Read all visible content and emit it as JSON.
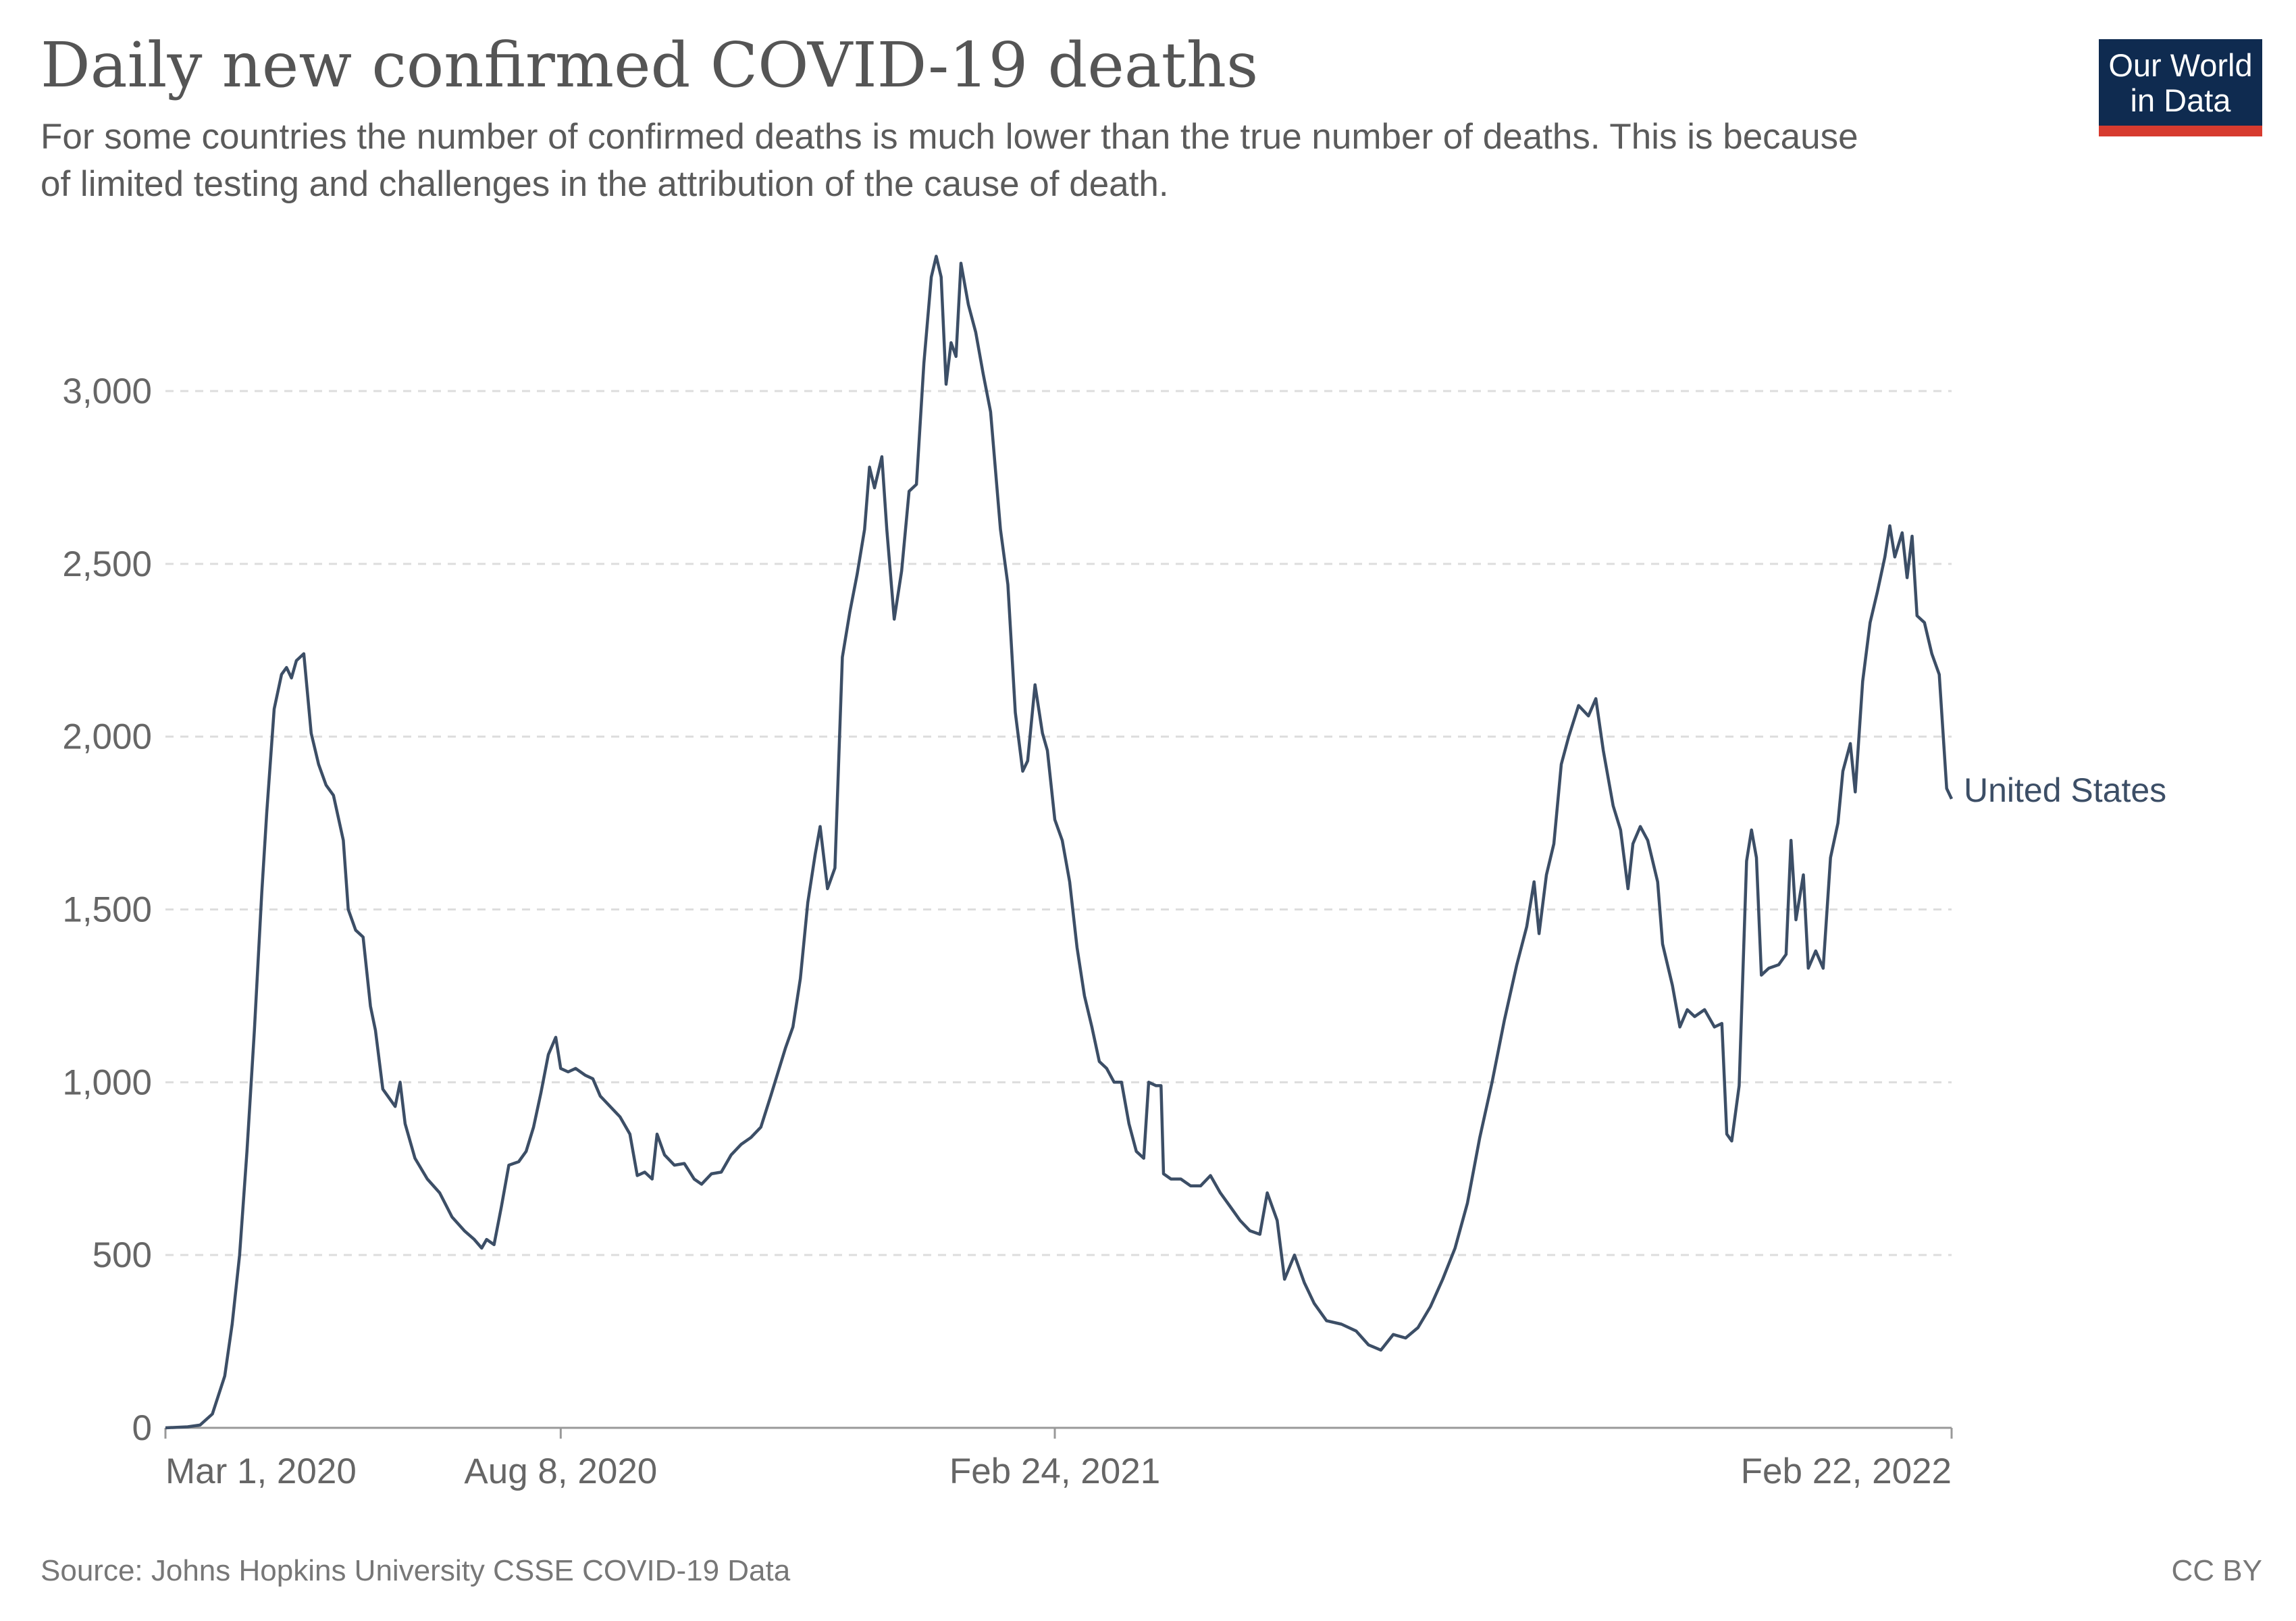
{
  "header": {
    "title": "Daily new confirmed COVID-19 deaths",
    "subtitle_line1": "For some countries the number of confirmed deaths is much lower than the true number of deaths. This is because",
    "subtitle_line2": "of limited testing and challenges in the attribution of the cause of death."
  },
  "logo": {
    "line1": "Our World",
    "line2": "in Data",
    "bg_color": "#0f2b50",
    "stripe_color": "#d73b2f"
  },
  "footer": {
    "source": "Source: Johns Hopkins University CSSE COVID-19 Data",
    "license": "CC BY"
  },
  "chart_data": {
    "type": "line",
    "title": "Daily new confirmed COVID-19 deaths",
    "xlabel": "",
    "ylabel": "",
    "ylim": [
      0,
      3400
    ],
    "yticks": [
      0,
      500,
      1000,
      1500,
      2000,
      2500,
      3000
    ],
    "ytick_labels": [
      "0",
      "500",
      "1,000",
      "1,500",
      "2,000",
      "2,500",
      "3,000"
    ],
    "xlim": [
      "2020-03-01",
      "2022-02-22"
    ],
    "xticks": [
      "2020-03-01",
      "2020-08-08",
      "2021-02-24",
      "2022-02-22"
    ],
    "xtick_labels": [
      "Mar 1, 2020",
      "Aug 8, 2020",
      "Feb 24, 2021",
      "Feb 22, 2022"
    ],
    "grid": "horizontal dashed",
    "legend": "inline label at line end",
    "series": [
      {
        "name": "United States",
        "color": "#3c4e66",
        "points": [
          [
            "2020-03-01",
            0
          ],
          [
            "2020-03-10",
            3
          ],
          [
            "2020-03-15",
            8
          ],
          [
            "2020-03-20",
            40
          ],
          [
            "2020-03-25",
            150
          ],
          [
            "2020-03-28",
            300
          ],
          [
            "2020-03-31",
            500
          ],
          [
            "2020-04-03",
            800
          ],
          [
            "2020-04-06",
            1150
          ],
          [
            "2020-04-09",
            1550
          ],
          [
            "2020-04-11",
            1780
          ],
          [
            "2020-04-14",
            2080
          ],
          [
            "2020-04-17",
            2180
          ],
          [
            "2020-04-19",
            2200
          ],
          [
            "2020-04-21",
            2170
          ],
          [
            "2020-04-23",
            2220
          ],
          [
            "2020-04-26",
            2240
          ],
          [
            "2020-04-29",
            2010
          ],
          [
            "2020-05-02",
            1920
          ],
          [
            "2020-05-05",
            1860
          ],
          [
            "2020-05-08",
            1830
          ],
          [
            "2020-05-12",
            1700
          ],
          [
            "2020-05-14",
            1500
          ],
          [
            "2020-05-17",
            1440
          ],
          [
            "2020-05-20",
            1420
          ],
          [
            "2020-05-23",
            1220
          ],
          [
            "2020-05-25",
            1150
          ],
          [
            "2020-05-28",
            980
          ],
          [
            "2020-06-02",
            930
          ],
          [
            "2020-06-04",
            1000
          ],
          [
            "2020-06-06",
            880
          ],
          [
            "2020-06-10",
            780
          ],
          [
            "2020-06-15",
            720
          ],
          [
            "2020-06-20",
            680
          ],
          [
            "2020-06-25",
            610
          ],
          [
            "2020-06-30",
            570
          ],
          [
            "2020-07-04",
            545
          ],
          [
            "2020-07-07",
            520
          ],
          [
            "2020-07-09",
            545
          ],
          [
            "2020-07-12",
            530
          ],
          [
            "2020-07-15",
            640
          ],
          [
            "2020-07-18",
            760
          ],
          [
            "2020-07-22",
            770
          ],
          [
            "2020-07-25",
            800
          ],
          [
            "2020-07-28",
            870
          ],
          [
            "2020-07-31",
            970
          ],
          [
            "2020-08-03",
            1080
          ],
          [
            "2020-08-06",
            1130
          ],
          [
            "2020-08-08",
            1040
          ],
          [
            "2020-08-11",
            1030
          ],
          [
            "2020-08-14",
            1040
          ],
          [
            "2020-08-18",
            1020
          ],
          [
            "2020-08-21",
            1010
          ],
          [
            "2020-08-24",
            960
          ],
          [
            "2020-08-28",
            930
          ],
          [
            "2020-09-01",
            900
          ],
          [
            "2020-09-05",
            850
          ],
          [
            "2020-09-08",
            730
          ],
          [
            "2020-09-11",
            740
          ],
          [
            "2020-09-14",
            720
          ],
          [
            "2020-09-16",
            850
          ],
          [
            "2020-09-19",
            790
          ],
          [
            "2020-09-23",
            760
          ],
          [
            "2020-09-27",
            765
          ],
          [
            "2020-10-01",
            720
          ],
          [
            "2020-10-04",
            705
          ],
          [
            "2020-10-08",
            735
          ],
          [
            "2020-10-12",
            740
          ],
          [
            "2020-10-16",
            790
          ],
          [
            "2020-10-20",
            820
          ],
          [
            "2020-10-24",
            840
          ],
          [
            "2020-10-28",
            870
          ],
          [
            "2020-11-01",
            960
          ],
          [
            "2020-11-04",
            1030
          ],
          [
            "2020-11-07",
            1100
          ],
          [
            "2020-11-10",
            1160
          ],
          [
            "2020-11-13",
            1300
          ],
          [
            "2020-11-16",
            1520
          ],
          [
            "2020-11-19",
            1660
          ],
          [
            "2020-11-21",
            1740
          ],
          [
            "2020-11-24",
            1560
          ],
          [
            "2020-11-27",
            1620
          ],
          [
            "2020-11-30",
            2230
          ],
          [
            "2020-12-03",
            2360
          ],
          [
            "2020-12-06",
            2470
          ],
          [
            "2020-12-09",
            2600
          ],
          [
            "2020-12-11",
            2780
          ],
          [
            "2020-12-13",
            2720
          ],
          [
            "2020-12-16",
            2810
          ],
          [
            "2020-12-18",
            2600
          ],
          [
            "2020-12-21",
            2340
          ],
          [
            "2020-12-24",
            2480
          ],
          [
            "2020-12-27",
            2710
          ],
          [
            "2020-12-30",
            2730
          ],
          [
            "2021-01-02",
            3080
          ],
          [
            "2021-01-05",
            3330
          ],
          [
            "2021-01-07",
            3390
          ],
          [
            "2021-01-09",
            3330
          ],
          [
            "2021-01-11",
            3020
          ],
          [
            "2021-01-13",
            3140
          ],
          [
            "2021-01-15",
            3100
          ],
          [
            "2021-01-17",
            3370
          ],
          [
            "2021-01-20",
            3250
          ],
          [
            "2021-01-23",
            3170
          ],
          [
            "2021-01-26",
            3050
          ],
          [
            "2021-01-29",
            2940
          ],
          [
            "2021-02-02",
            2600
          ],
          [
            "2021-02-05",
            2440
          ],
          [
            "2021-02-08",
            2070
          ],
          [
            "2021-02-11",
            1900
          ],
          [
            "2021-02-13",
            1930
          ],
          [
            "2021-02-16",
            2150
          ],
          [
            "2021-02-19",
            2010
          ],
          [
            "2021-02-21",
            1960
          ],
          [
            "2021-02-24",
            1760
          ],
          [
            "2021-02-27",
            1700
          ],
          [
            "2021-03-02",
            1580
          ],
          [
            "2021-03-05",
            1390
          ],
          [
            "2021-03-08",
            1250
          ],
          [
            "2021-03-11",
            1160
          ],
          [
            "2021-03-14",
            1060
          ],
          [
            "2021-03-17",
            1040
          ],
          [
            "2021-03-20",
            1000
          ],
          [
            "2021-03-23",
            1000
          ],
          [
            "2021-03-26",
            880
          ],
          [
            "2021-03-29",
            800
          ],
          [
            "2021-04-01",
            780
          ],
          [
            "2021-04-03",
            1000
          ],
          [
            "2021-04-06",
            990
          ],
          [
            "2021-04-08",
            990
          ],
          [
            "2021-04-09",
            735
          ],
          [
            "2021-04-12",
            720
          ],
          [
            "2021-04-16",
            720
          ],
          [
            "2021-04-20",
            700
          ],
          [
            "2021-04-24",
            700
          ],
          [
            "2021-04-28",
            730
          ],
          [
            "2021-05-02",
            680
          ],
          [
            "2021-05-06",
            640
          ],
          [
            "2021-05-10",
            600
          ],
          [
            "2021-05-14",
            570
          ],
          [
            "2021-05-18",
            560
          ],
          [
            "2021-05-21",
            680
          ],
          [
            "2021-05-25",
            600
          ],
          [
            "2021-05-28",
            430
          ],
          [
            "2021-06-01",
            500
          ],
          [
            "2021-06-05",
            420
          ],
          [
            "2021-06-09",
            360
          ],
          [
            "2021-06-14",
            310
          ],
          [
            "2021-06-20",
            300
          ],
          [
            "2021-06-26",
            280
          ],
          [
            "2021-07-01",
            240
          ],
          [
            "2021-07-06",
            225
          ],
          [
            "2021-07-11",
            270
          ],
          [
            "2021-07-16",
            260
          ],
          [
            "2021-07-21",
            290
          ],
          [
            "2021-07-26",
            350
          ],
          [
            "2021-07-31",
            430
          ],
          [
            "2021-08-05",
            520
          ],
          [
            "2021-08-10",
            650
          ],
          [
            "2021-08-15",
            840
          ],
          [
            "2021-08-20",
            1000
          ],
          [
            "2021-08-25",
            1180
          ],
          [
            "2021-08-30",
            1340
          ],
          [
            "2021-09-03",
            1450
          ],
          [
            "2021-09-06",
            1580
          ],
          [
            "2021-09-08",
            1430
          ],
          [
            "2021-09-11",
            1600
          ],
          [
            "2021-09-14",
            1690
          ],
          [
            "2021-09-17",
            1920
          ],
          [
            "2021-09-20",
            2000
          ],
          [
            "2021-09-24",
            2090
          ],
          [
            "2021-09-28",
            2060
          ],
          [
            "2021-10-01",
            2110
          ],
          [
            "2021-10-04",
            1960
          ],
          [
            "2021-10-08",
            1800
          ],
          [
            "2021-10-11",
            1730
          ],
          [
            "2021-10-14",
            1560
          ],
          [
            "2021-10-16",
            1690
          ],
          [
            "2021-10-19",
            1740
          ],
          [
            "2021-10-22",
            1700
          ],
          [
            "2021-10-26",
            1580
          ],
          [
            "2021-10-28",
            1400
          ],
          [
            "2021-11-01",
            1280
          ],
          [
            "2021-11-04",
            1160
          ],
          [
            "2021-11-07",
            1210
          ],
          [
            "2021-11-10",
            1190
          ],
          [
            "2021-11-14",
            1210
          ],
          [
            "2021-11-18",
            1160
          ],
          [
            "2021-11-21",
            1170
          ],
          [
            "2021-11-23",
            850
          ],
          [
            "2021-11-25",
            830
          ],
          [
            "2021-11-28",
            990
          ],
          [
            "2021-12-01",
            1640
          ],
          [
            "2021-12-03",
            1730
          ],
          [
            "2021-12-05",
            1650
          ],
          [
            "2021-12-07",
            1310
          ],
          [
            "2021-12-10",
            1330
          ],
          [
            "2021-12-14",
            1340
          ],
          [
            "2021-12-17",
            1370
          ],
          [
            "2021-12-19",
            1700
          ],
          [
            "2021-12-21",
            1470
          ],
          [
            "2021-12-24",
            1600
          ],
          [
            "2021-12-26",
            1330
          ],
          [
            "2021-12-29",
            1380
          ],
          [
            "2022-01-01",
            1330
          ],
          [
            "2022-01-04",
            1650
          ],
          [
            "2022-01-07",
            1750
          ],
          [
            "2022-01-09",
            1900
          ],
          [
            "2022-01-12",
            1980
          ],
          [
            "2022-01-14",
            1840
          ],
          [
            "2022-01-17",
            2160
          ],
          [
            "2022-01-20",
            2330
          ],
          [
            "2022-01-23",
            2420
          ],
          [
            "2022-01-26",
            2520
          ],
          [
            "2022-01-28",
            2610
          ],
          [
            "2022-01-30",
            2520
          ],
          [
            "2022-02-02",
            2590
          ],
          [
            "2022-02-04",
            2460
          ],
          [
            "2022-02-06",
            2580
          ],
          [
            "2022-02-08",
            2350
          ],
          [
            "2022-02-11",
            2330
          ],
          [
            "2022-02-14",
            2240
          ],
          [
            "2022-02-17",
            2180
          ],
          [
            "2022-02-20",
            1850
          ],
          [
            "2022-02-22",
            1820
          ]
        ]
      }
    ]
  }
}
